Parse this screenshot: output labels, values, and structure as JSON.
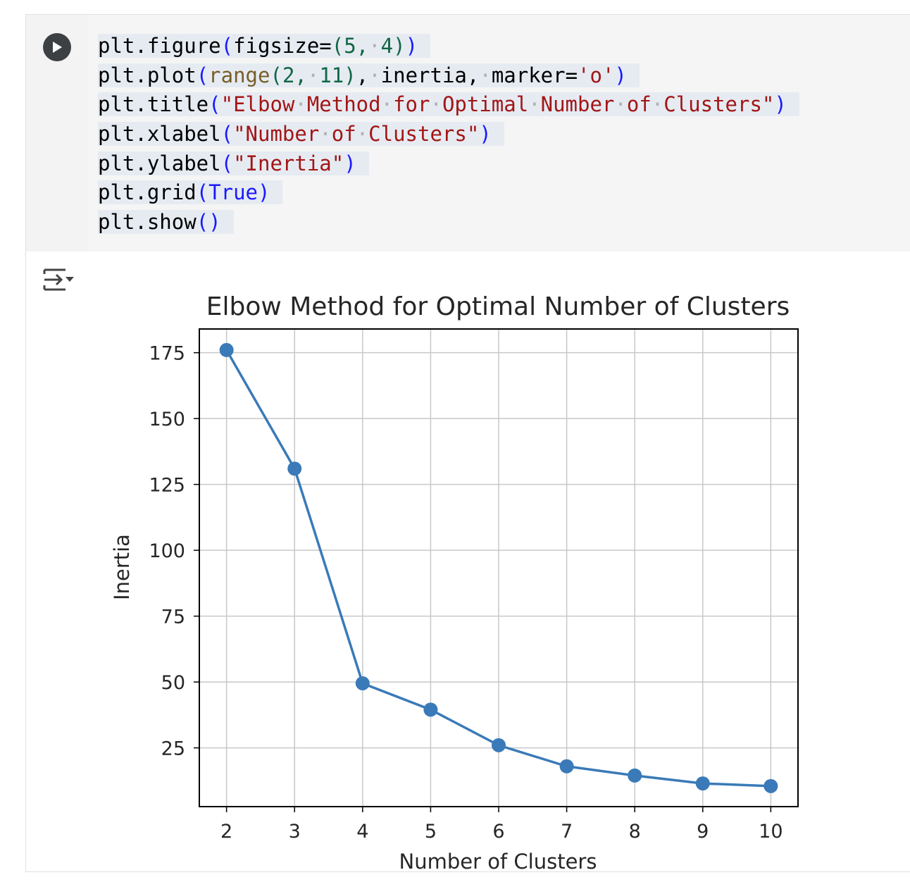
{
  "code_lines": [
    [
      {
        "t": "plt.figure"
      },
      {
        "t": "(",
        "c": "kw-b"
      },
      {
        "t": "figsize=",
        "c": ""
      },
      {
        "t": "(",
        "c": "num"
      },
      {
        "t": "5,",
        "c": "num"
      },
      {
        "t": "·",
        "c": "dot"
      },
      {
        "t": "4",
        "c": "num"
      },
      {
        "t": ")",
        "c": "num"
      },
      {
        "t": ")",
        "c": "kw-b"
      }
    ],
    [
      {
        "t": "plt.plot"
      },
      {
        "t": "(",
        "c": "kw-b"
      },
      {
        "t": "range",
        "c": "fn-y"
      },
      {
        "t": "(",
        "c": "num"
      },
      {
        "t": "2,",
        "c": "num"
      },
      {
        "t": "·",
        "c": "dot"
      },
      {
        "t": "11",
        "c": "num"
      },
      {
        "t": ")",
        "c": "num"
      },
      {
        "t": ",",
        "c": ""
      },
      {
        "t": "·",
        "c": "dot"
      },
      {
        "t": "inertia,",
        "c": ""
      },
      {
        "t": "·",
        "c": "dot"
      },
      {
        "t": "marker=",
        "c": ""
      },
      {
        "t": "'o'",
        "c": "str"
      },
      {
        "t": ")",
        "c": "kw-b"
      }
    ],
    [
      {
        "t": "plt.title"
      },
      {
        "t": "(",
        "c": "kw-b"
      },
      {
        "t": "\"Elbow",
        "c": "str"
      },
      {
        "t": "·",
        "c": "dot"
      },
      {
        "t": "Method",
        "c": "str"
      },
      {
        "t": "·",
        "c": "dot"
      },
      {
        "t": "for",
        "c": "str"
      },
      {
        "t": "·",
        "c": "dot"
      },
      {
        "t": "Optimal",
        "c": "str"
      },
      {
        "t": "·",
        "c": "dot"
      },
      {
        "t": "Number",
        "c": "str"
      },
      {
        "t": "·",
        "c": "dot"
      },
      {
        "t": "of",
        "c": "str"
      },
      {
        "t": "·",
        "c": "dot"
      },
      {
        "t": "Clusters\"",
        "c": "str"
      },
      {
        "t": ")",
        "c": "kw-b"
      }
    ],
    [
      {
        "t": "plt.xlabel"
      },
      {
        "t": "(",
        "c": "kw-b"
      },
      {
        "t": "\"Number",
        "c": "str"
      },
      {
        "t": "·",
        "c": "dot"
      },
      {
        "t": "of",
        "c": "str"
      },
      {
        "t": "·",
        "c": "dot"
      },
      {
        "t": "Clusters\"",
        "c": "str"
      },
      {
        "t": ")",
        "c": "kw-b"
      }
    ],
    [
      {
        "t": "plt.ylabel"
      },
      {
        "t": "(",
        "c": "kw-b"
      },
      {
        "t": "\"Inertia\"",
        "c": "str"
      },
      {
        "t": ")",
        "c": "kw-b"
      }
    ],
    [
      {
        "t": "plt.grid"
      },
      {
        "t": "(",
        "c": "kw-b"
      },
      {
        "t": "True",
        "c": "kw-b"
      },
      {
        "t": ")",
        "c": "kw-b"
      }
    ],
    [
      {
        "t": "plt.show"
      },
      {
        "t": "()",
        "c": "kw-b"
      }
    ]
  ],
  "colors": {
    "line": "#3a7ab8",
    "marker": "#3a7ab8",
    "grid": "#c8c8c8"
  },
  "icons": {
    "run": "play-icon",
    "output": "output-toggle-icon"
  },
  "chart_data": {
    "type": "line",
    "title": "Elbow Method for Optimal Number of Clusters",
    "xlabel": "Number of Clusters",
    "ylabel": "Inertia",
    "x": [
      2,
      3,
      4,
      5,
      6,
      7,
      8,
      9,
      10
    ],
    "series": [
      {
        "values": [
          176,
          131,
          49.5,
          39.5,
          26,
          18,
          14.5,
          11.5,
          10.5
        ],
        "marker": "o"
      }
    ],
    "xticks": [
      "2",
      "3",
      "4",
      "5",
      "6",
      "7",
      "8",
      "9",
      "10"
    ],
    "yticks": [
      "25",
      "50",
      "75",
      "100",
      "125",
      "150",
      "175"
    ],
    "ytick_values": [
      25,
      50,
      75,
      100,
      125,
      150,
      175
    ],
    "xlim": [
      1.6,
      10.4
    ],
    "ylim": [
      2.7,
      184
    ],
    "grid": true
  }
}
